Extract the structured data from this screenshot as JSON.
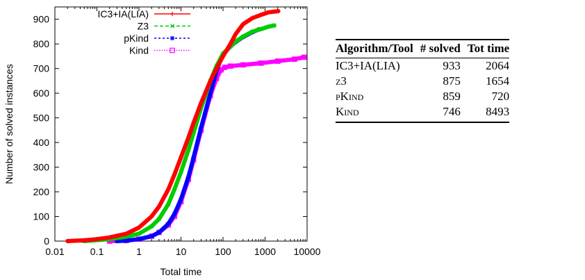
{
  "chart_data": {
    "type": "line",
    "xlabel": "Total time",
    "ylabel": "Number of solved instances",
    "xscale": "log",
    "xlim": [
      0.01,
      10000
    ],
    "ylim": [
      0,
      950
    ],
    "x_ticks": [
      0.01,
      0.1,
      1,
      10,
      100,
      1000,
      10000
    ],
    "x_tick_labels": [
      "0.01",
      "0.1",
      "1",
      "10",
      "100",
      "1000",
      "10000"
    ],
    "y_ticks": [
      0,
      100,
      200,
      300,
      400,
      500,
      600,
      700,
      800,
      900
    ],
    "y_tick_labels": [
      "0",
      "100",
      "200",
      "300",
      "400",
      "500",
      "600",
      "700",
      "800",
      "900"
    ],
    "grid": false,
    "legend_position": "top-left",
    "series": [
      {
        "name": "IC3+IA(LIA)",
        "color": "#ff0000",
        "marker": "plus",
        "points": [
          [
            0.02,
            0
          ],
          [
            0.05,
            3
          ],
          [
            0.1,
            8
          ],
          [
            0.2,
            15
          ],
          [
            0.5,
            30
          ],
          [
            1,
            55
          ],
          [
            2,
            100
          ],
          [
            3,
            140
          ],
          [
            5,
            210
          ],
          [
            7,
            270
          ],
          [
            10,
            340
          ],
          [
            15,
            420
          ],
          [
            20,
            480
          ],
          [
            30,
            560
          ],
          [
            50,
            650
          ],
          [
            70,
            700
          ],
          [
            100,
            750
          ],
          [
            150,
            800
          ],
          [
            200,
            840
          ],
          [
            300,
            880
          ],
          [
            500,
            905
          ],
          [
            800,
            918
          ],
          [
            1200,
            928
          ],
          [
            2064,
            933
          ]
        ]
      },
      {
        "name": "Z3",
        "color": "#00cc00",
        "marker": "x",
        "points": [
          [
            0.05,
            0
          ],
          [
            0.1,
            4
          ],
          [
            0.2,
            8
          ],
          [
            0.5,
            18
          ],
          [
            1,
            30
          ],
          [
            2,
            60
          ],
          [
            3,
            90
          ],
          [
            5,
            150
          ],
          [
            7,
            210
          ],
          [
            10,
            280
          ],
          [
            15,
            370
          ],
          [
            20,
            440
          ],
          [
            30,
            540
          ],
          [
            50,
            650
          ],
          [
            70,
            710
          ],
          [
            100,
            760
          ],
          [
            150,
            790
          ],
          [
            200,
            810
          ],
          [
            300,
            830
          ],
          [
            500,
            850
          ],
          [
            800,
            860
          ],
          [
            1200,
            870
          ],
          [
            1654,
            875
          ]
        ]
      },
      {
        "name": "pKind",
        "color": "#0000ff",
        "marker": "star",
        "points": [
          [
            0.3,
            0
          ],
          [
            0.5,
            2
          ],
          [
            1,
            8
          ],
          [
            2,
            20
          ],
          [
            3,
            35
          ],
          [
            5,
            70
          ],
          [
            7,
            110
          ],
          [
            10,
            170
          ],
          [
            15,
            260
          ],
          [
            20,
            340
          ],
          [
            30,
            460
          ],
          [
            50,
            600
          ],
          [
            70,
            690
          ],
          [
            90,
            740
          ],
          [
            110,
            765
          ],
          [
            150,
            790
          ],
          [
            200,
            808
          ],
          [
            300,
            828
          ],
          [
            500,
            848
          ],
          [
            720,
            859
          ]
        ]
      },
      {
        "name": "Kind",
        "color": "#ff00ff",
        "marker": "square",
        "points": [
          [
            0.2,
            0
          ],
          [
            0.5,
            2
          ],
          [
            1,
            8
          ],
          [
            2,
            20
          ],
          [
            3,
            35
          ],
          [
            5,
            65
          ],
          [
            7,
            100
          ],
          [
            10,
            160
          ],
          [
            15,
            250
          ],
          [
            20,
            330
          ],
          [
            30,
            450
          ],
          [
            50,
            590
          ],
          [
            70,
            660
          ],
          [
            90,
            695
          ],
          [
            110,
            705
          ],
          [
            150,
            710
          ],
          [
            300,
            715
          ],
          [
            800,
            722
          ],
          [
            2000,
            730
          ],
          [
            5000,
            738
          ],
          [
            8493,
            746
          ]
        ]
      }
    ]
  },
  "table": {
    "headers": [
      "Algorithm/Tool",
      "# solved",
      "Tot time"
    ],
    "rows": [
      {
        "name": "IC3+IA(LIA)",
        "solved": "933",
        "time": "2064"
      },
      {
        "name": "z3",
        "solved": "875",
        "time": "1654"
      },
      {
        "name": "pKind",
        "solved": "859",
        "time": "720"
      },
      {
        "name": "Kind",
        "solved": "746",
        "time": "8493"
      }
    ]
  }
}
